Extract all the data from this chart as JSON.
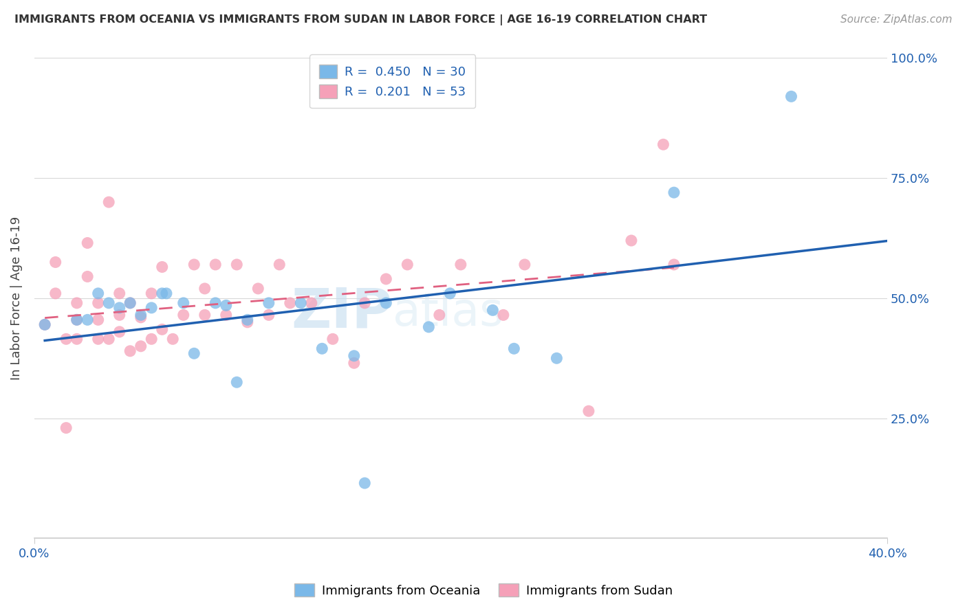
{
  "title": "IMMIGRANTS FROM OCEANIA VS IMMIGRANTS FROM SUDAN IN LABOR FORCE | AGE 16-19 CORRELATION CHART",
  "source": "Source: ZipAtlas.com",
  "ylabel": "In Labor Force | Age 16-19",
  "xlim": [
    0.0,
    0.4
  ],
  "ylim": [
    0.0,
    1.0
  ],
  "ytick_positions": [
    0.0,
    0.25,
    0.5,
    0.75,
    1.0
  ],
  "ytick_labels": [
    "",
    "25.0%",
    "50.0%",
    "75.0%",
    "100.0%"
  ],
  "xtick_positions": [
    0.0,
    0.4
  ],
  "xtick_labels": [
    "0.0%",
    "40.0%"
  ],
  "oceania_R": 0.45,
  "oceania_N": 30,
  "sudan_R": 0.201,
  "sudan_N": 53,
  "oceania_color": "#7ab8e8",
  "sudan_color": "#f5a0b8",
  "oceania_line_color": "#2060b0",
  "sudan_line_color": "#e06080",
  "watermark_zip": "ZIP",
  "watermark_atlas": "atlas",
  "oceania_x": [
    0.005,
    0.02,
    0.025,
    0.03,
    0.035,
    0.04,
    0.045,
    0.05,
    0.055,
    0.06,
    0.062,
    0.07,
    0.075,
    0.085,
    0.09,
    0.095,
    0.1,
    0.11,
    0.125,
    0.135,
    0.15,
    0.155,
    0.165,
    0.185,
    0.195,
    0.215,
    0.225,
    0.245,
    0.3,
    0.355
  ],
  "oceania_y": [
    0.445,
    0.455,
    0.455,
    0.51,
    0.49,
    0.48,
    0.49,
    0.465,
    0.48,
    0.51,
    0.51,
    0.49,
    0.385,
    0.49,
    0.485,
    0.325,
    0.455,
    0.49,
    0.49,
    0.395,
    0.38,
    0.115,
    0.49,
    0.44,
    0.51,
    0.475,
    0.395,
    0.375,
    0.72,
    0.92
  ],
  "sudan_x": [
    0.005,
    0.01,
    0.01,
    0.015,
    0.015,
    0.02,
    0.02,
    0.02,
    0.025,
    0.025,
    0.03,
    0.03,
    0.03,
    0.035,
    0.035,
    0.04,
    0.04,
    0.04,
    0.045,
    0.045,
    0.05,
    0.05,
    0.055,
    0.055,
    0.06,
    0.06,
    0.065,
    0.07,
    0.075,
    0.08,
    0.08,
    0.085,
    0.09,
    0.095,
    0.1,
    0.105,
    0.11,
    0.115,
    0.12,
    0.13,
    0.14,
    0.15,
    0.155,
    0.165,
    0.175,
    0.19,
    0.2,
    0.22,
    0.23,
    0.26,
    0.28,
    0.295,
    0.3
  ],
  "sudan_y": [
    0.445,
    0.51,
    0.575,
    0.23,
    0.415,
    0.415,
    0.455,
    0.49,
    0.545,
    0.615,
    0.415,
    0.455,
    0.49,
    0.415,
    0.7,
    0.43,
    0.465,
    0.51,
    0.39,
    0.49,
    0.4,
    0.46,
    0.415,
    0.51,
    0.435,
    0.565,
    0.415,
    0.465,
    0.57,
    0.465,
    0.52,
    0.57,
    0.465,
    0.57,
    0.45,
    0.52,
    0.465,
    0.57,
    0.49,
    0.49,
    0.415,
    0.365,
    0.49,
    0.54,
    0.57,
    0.465,
    0.57,
    0.465,
    0.57,
    0.265,
    0.62,
    0.82,
    0.57
  ]
}
